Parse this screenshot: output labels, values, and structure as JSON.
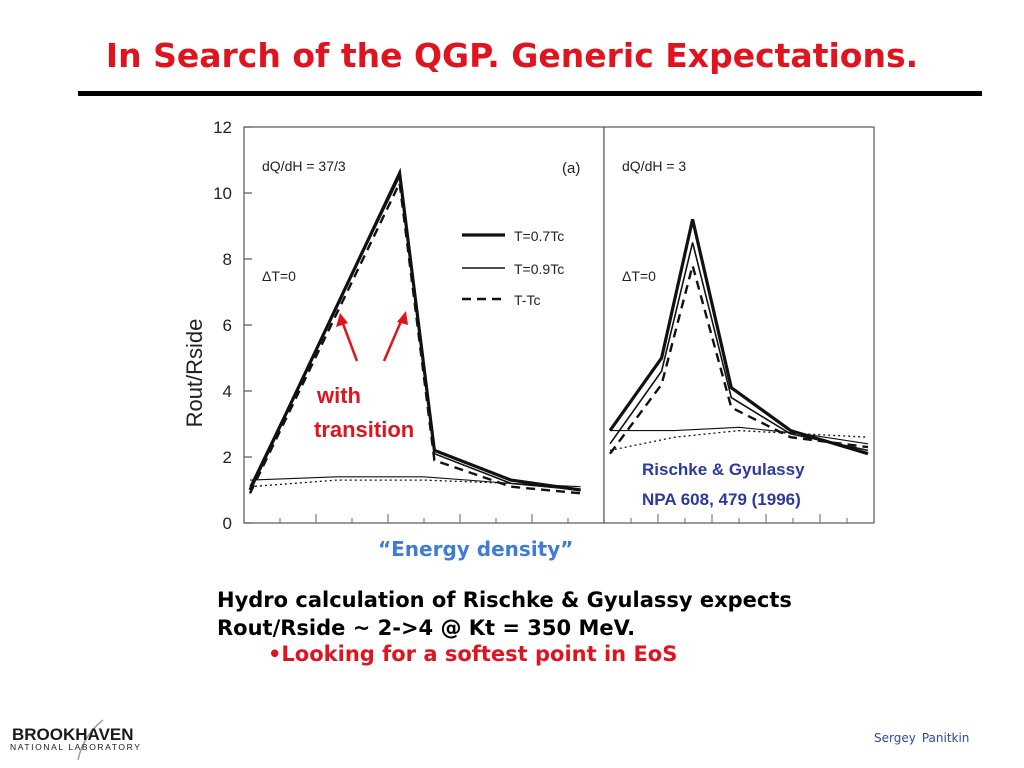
{
  "slide": {
    "title": "In Search of the QGP. Generic Expectations.",
    "caption": "“Energy density”",
    "body_lines": [
      "Hydro calculation of Rischke & Gyulassy expects",
      "Rout/Rside ~ 2->4 @ Kt = 350 MeV."
    ],
    "bullet": "•Looking for a softest point in EoS",
    "footer": {
      "logo_main": "BROOKHAVEN",
      "logo_sub": "NATIONAL LABORATORY",
      "author_first": "Sergey",
      "author_last": "Panitkin"
    }
  },
  "colors": {
    "title": "#e0141e",
    "caption": "#3f7cd6",
    "annotation": "#e0141e",
    "reference": "#2c3a9c"
  },
  "chart_data": [
    {
      "type": "line",
      "panel_label": "(a)",
      "parameter": "dQ/dH = 37/3",
      "delta_t": "ΔT=0",
      "ylabel": "Rout/Rside",
      "ylim": [
        0,
        12
      ],
      "y_ticks": [
        "0",
        "2",
        "4",
        "6",
        "8",
        "10",
        "12"
      ],
      "x_ticks_labels": false,
      "xlim": [
        0,
        10
      ],
      "annotation": "with transition",
      "legend": {
        "placement": "right",
        "entries": [
          "T=0.7Tc",
          "T=0.9Tc",
          "T-Tc"
        ]
      },
      "series": [
        {
          "name": "T=0.7Tc",
          "style": "thick",
          "x": [
            0,
            4.3,
            5.3,
            7.5,
            9.5
          ],
          "y": [
            1.0,
            10.6,
            2.2,
            1.3,
            1.0
          ]
        },
        {
          "name": "T=0.9Tc",
          "style": "thin",
          "x": [
            0,
            4.3,
            5.3,
            7.5,
            9.5
          ],
          "y": [
            1.1,
            10.5,
            2.1,
            1.2,
            1.0
          ]
        },
        {
          "name": "T-Tc",
          "style": "dashed",
          "x": [
            0,
            4.3,
            5.3,
            7.5,
            9.5
          ],
          "y": [
            0.9,
            10.3,
            1.9,
            1.1,
            0.9
          ]
        },
        {
          "name": "",
          "style": "thin-flat",
          "x": [
            0,
            2.5,
            5.0,
            7.5,
            9.5
          ],
          "y": [
            1.3,
            1.4,
            1.4,
            1.2,
            1.1
          ]
        },
        {
          "name": "",
          "style": "dotted",
          "x": [
            0,
            2.5,
            5.0,
            7.5,
            9.5
          ],
          "y": [
            1.1,
            1.3,
            1.3,
            1.2,
            1.0
          ]
        }
      ]
    },
    {
      "type": "line",
      "parameter": "dQ/dH = 3",
      "delta_t": "ΔT=0",
      "ylim": [
        0,
        12
      ],
      "xlim": [
        0,
        10
      ],
      "reference": [
        "Rischke & Gyulassy",
        "NPA 608, 479 (1996)"
      ],
      "series": [
        {
          "name": "",
          "style": "thick",
          "x": [
            0,
            2.0,
            3.2,
            4.7,
            7.0,
            10
          ],
          "y": [
            2.8,
            5.0,
            9.2,
            4.1,
            2.8,
            2.1
          ]
        },
        {
          "name": "",
          "style": "thin",
          "x": [
            0,
            2.0,
            3.2,
            4.7,
            7.0,
            10
          ],
          "y": [
            2.4,
            4.6,
            8.5,
            3.8,
            2.7,
            2.2
          ]
        },
        {
          "name": "",
          "style": "dashed",
          "x": [
            0,
            2.0,
            3.2,
            4.7,
            7.0,
            10
          ],
          "y": [
            2.1,
            4.2,
            7.8,
            3.5,
            2.6,
            2.3
          ]
        },
        {
          "name": "",
          "style": "thin-flat",
          "x": [
            0,
            2.5,
            5.0,
            7.5,
            10
          ],
          "y": [
            2.8,
            2.8,
            2.9,
            2.7,
            2.4
          ]
        },
        {
          "name": "",
          "style": "dotted",
          "x": [
            0,
            2.5,
            5.0,
            7.5,
            10
          ],
          "y": [
            2.2,
            2.6,
            2.8,
            2.7,
            2.6
          ]
        }
      ]
    }
  ]
}
